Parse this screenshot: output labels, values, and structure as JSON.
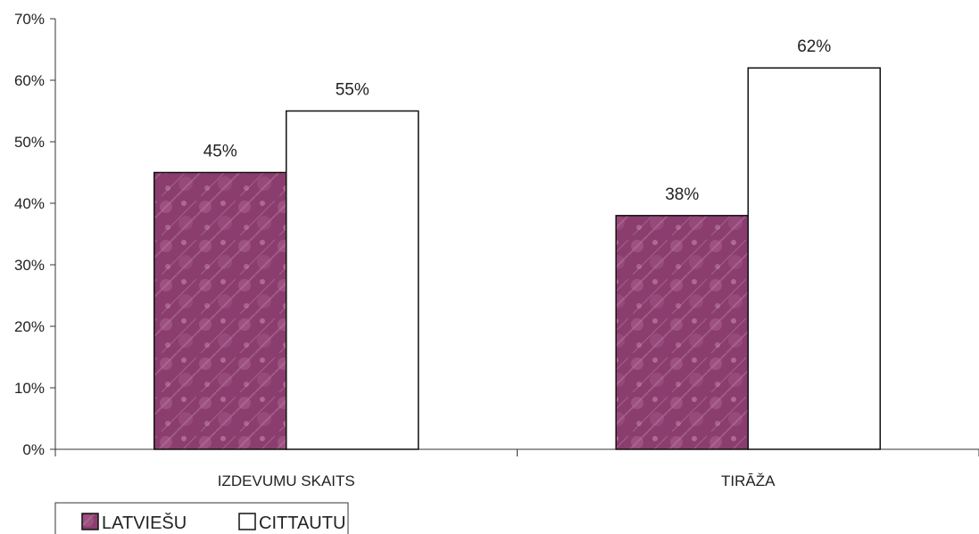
{
  "chart_data": {
    "type": "bar",
    "categories": [
      "IZDEVUMU SKAITS",
      "TIRĀŽA"
    ],
    "series": [
      {
        "name": "LATVIEŠU",
        "values": [
          45,
          38
        ],
        "data_labels": [
          "45%",
          "38%"
        ],
        "fill": "pattern-purple",
        "color": "#8a3d6e"
      },
      {
        "name": "CITTAUTU",
        "values": [
          55,
          62
        ],
        "data_labels": [
          "55%",
          "62%"
        ],
        "fill": "white",
        "color": "#ffffff"
      }
    ],
    "ylim": [
      0,
      70
    ],
    "yticks": [
      "0%",
      "10%",
      "20%",
      "30%",
      "40%",
      "50%",
      "60%",
      "70%"
    ],
    "grid": false,
    "legend_position": "bottom-left",
    "title": "",
    "xlabel": "",
    "ylabel": ""
  },
  "legend": {
    "items": [
      {
        "label": "LATVIEŠU",
        "swatch": "pattern-purple"
      },
      {
        "label": "CITTAUTU",
        "swatch": "white"
      }
    ]
  },
  "colors": {
    "axis": "#333333",
    "bar_outline": "#111111",
    "pattern_base": "#8a3d6e",
    "pattern_light": "#b97ea0"
  }
}
